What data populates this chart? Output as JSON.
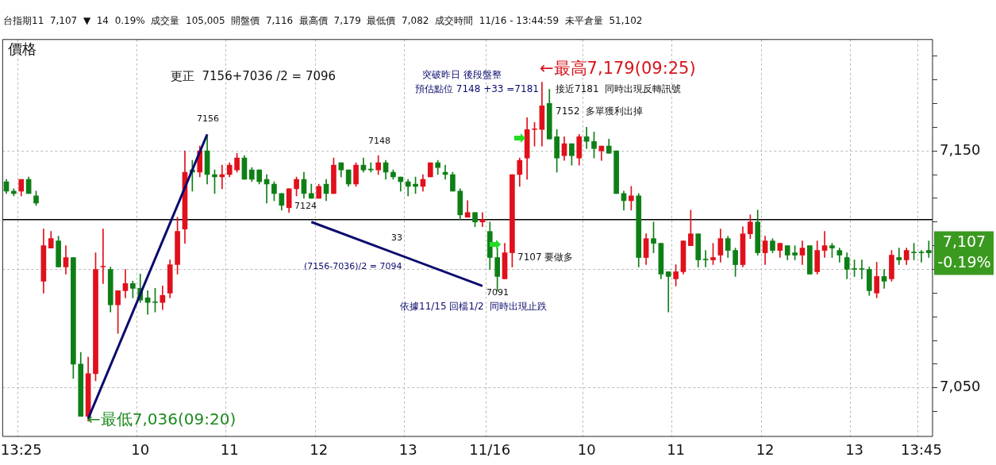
{
  "chart_data": {
    "type": "candlestick",
    "subtitle": "台指期11  7,107  ▼  14  0.19%  成交量  105,005  開盤價  7,116  最高價  7,179  最低價  7,082  成交時間  11/16 - 13:44:59  未平倉量  51,102",
    "ylabel": "價格",
    "categories": [
      null,
      null,
      "13:25",
      null,
      null,
      null,
      null,
      null,
      null,
      null,
      null,
      null,
      null,
      null,
      null,
      null,
      null,
      null,
      "10",
      null,
      null,
      null,
      null,
      null,
      null,
      null,
      null,
      null,
      null,
      null,
      "11",
      null,
      null,
      null,
      null,
      null,
      null,
      null,
      null,
      null,
      null,
      null,
      "12",
      null,
      null,
      null,
      null,
      null,
      null,
      null,
      null,
      null,
      null,
      null,
      "13",
      null,
      null,
      null,
      null,
      null,
      null,
      null,
      null,
      null,
      null,
      "11/16",
      null,
      null,
      null,
      null,
      null,
      null,
      null,
      null,
      null,
      null,
      null,
      null,
      "10",
      null,
      null,
      null,
      null,
      null,
      null,
      null,
      null,
      null,
      null,
      null,
      "11",
      null,
      null,
      null,
      null,
      null,
      null,
      null,
      null,
      null,
      null,
      null,
      "12",
      null,
      null,
      null,
      null,
      null,
      null,
      null,
      null,
      null,
      null,
      null,
      "13",
      null,
      null,
      null,
      null,
      null,
      null,
      null,
      null,
      "13:45",
      null
    ],
    "ohlc": [
      [
        7137,
        7138,
        7132,
        7133
      ],
      [
        7133,
        7134,
        7131,
        7132
      ],
      [
        7133,
        7138,
        7131,
        7138
      ],
      [
        7138,
        7139,
        7132,
        7132
      ],
      [
        7131,
        7133,
        7127,
        7128
      ],
      [
        7095,
        7117,
        7090,
        7110
      ],
      [
        7109,
        7116,
        7109,
        7113
      ],
      [
        7112,
        7114,
        7101,
        7101
      ],
      [
        7101,
        7110,
        7098,
        7105
      ],
      [
        7105,
        7105,
        7054,
        7060
      ],
      [
        7060,
        7065,
        7038,
        7038
      ],
      [
        7038,
        7063,
        7036,
        7056
      ],
      [
        7056,
        7107,
        7053,
        7100
      ],
      [
        7101,
        7117,
        7094,
        7101
      ],
      [
        7100,
        7101,
        7082,
        7085
      ],
      [
        7085,
        7091,
        7073,
        7091
      ],
      [
        7091,
        7100,
        7088,
        7094
      ],
      [
        7094,
        7095,
        7088,
        7092
      ],
      [
        7092,
        7098,
        7086,
        7087
      ],
      [
        7088,
        7091,
        7081,
        7086
      ],
      [
        7086,
        7092,
        7082,
        7086
      ],
      [
        7086,
        7093,
        7083,
        7089
      ],
      [
        7090,
        7104,
        7088,
        7102
      ],
      [
        7102,
        7122,
        7098,
        7116
      ],
      [
        7117,
        7150,
        7111,
        7141
      ],
      [
        7142,
        7146,
        7133,
        7141
      ],
      [
        7141,
        7152,
        7139,
        7150
      ],
      [
        7150,
        7156,
        7136,
        7140
      ],
      [
        7140,
        7142,
        7132,
        7139
      ],
      [
        7139,
        7144,
        7134,
        7140
      ],
      [
        7140,
        7145,
        7139,
        7144
      ],
      [
        7142,
        7149,
        7141,
        7147
      ],
      [
        7147,
        7148,
        7138,
        7138
      ],
      [
        7142,
        7143,
        7137,
        7138
      ],
      [
        7142,
        7142,
        7136,
        7137
      ],
      [
        7138,
        7140,
        7128,
        7136
      ],
      [
        7136,
        7137,
        7129,
        7132
      ],
      [
        7132,
        7132,
        7125,
        7127
      ],
      [
        7126,
        7134,
        7124,
        7134
      ],
      [
        7134,
        7139,
        7131,
        7138
      ],
      [
        7138,
        7141,
        7130,
        7132
      ],
      [
        7132,
        7136,
        7130,
        7130
      ],
      [
        7130,
        7136,
        7130,
        7135
      ],
      [
        7136,
        7138,
        7129,
        7132
      ],
      [
        7132,
        7147,
        7132,
        7144
      ],
      [
        7145,
        7145,
        7139,
        7142
      ],
      [
        7142,
        7142,
        7135,
        7136
      ],
      [
        7136,
        7145,
        7135,
        7144
      ],
      [
        7144,
        7147,
        7141,
        7142
      ],
      [
        7142,
        7145,
        7141,
        7142
      ],
      [
        7142,
        7148,
        7140,
        7145
      ],
      [
        7145,
        7146,
        7138,
        7141
      ],
      [
        7141,
        7142,
        7138,
        7139
      ],
      [
        7139,
        7139,
        7133,
        7137
      ],
      [
        7137,
        7138,
        7131,
        7135
      ],
      [
        7136,
        7139,
        7132,
        7135
      ],
      [
        7135,
        7140,
        7133,
        7138
      ],
      [
        7139,
        7145,
        7139,
        7145
      ],
      [
        7145,
        7146,
        7140,
        7143
      ],
      [
        7141,
        7144,
        7138,
        7140
      ],
      [
        7140,
        7141,
        7133,
        7133
      ],
      [
        7133,
        7134,
        7121,
        7123
      ],
      [
        7122,
        7129,
        7122,
        7124
      ],
      [
        7124,
        7124,
        7118,
        7120
      ],
      [
        7120,
        7124,
        7118,
        7121
      ],
      [
        7116,
        7120,
        7100,
        7105
      ],
      [
        7105,
        7109,
        7091,
        7097
      ],
      [
        7096,
        7111,
        7096,
        7107
      ],
      [
        7107,
        7140,
        7101,
        7140
      ],
      [
        7140,
        7147,
        7135,
        7146
      ],
      [
        7147,
        7164,
        7138,
        7159
      ],
      [
        7159,
        7162,
        7152,
        7159
      ],
      [
        7159,
        7179,
        7152,
        7169
      ],
      [
        7170,
        7176,
        7155,
        7155
      ],
      [
        7156,
        7159,
        7141,
        7147
      ],
      [
        7148,
        7156,
        7146,
        7153
      ],
      [
        7153,
        7153,
        7144,
        7148
      ],
      [
        7147,
        7157,
        7144,
        7156
      ],
      [
        7156,
        7160,
        7151,
        7154
      ],
      [
        7154,
        7158,
        7147,
        7151
      ],
      [
        7150,
        7152,
        7146,
        7152
      ],
      [
        7152,
        7155,
        7149,
        7149
      ],
      [
        7150,
        7150,
        7132,
        7132
      ],
      [
        7132,
        7133,
        7125,
        7129
      ],
      [
        7129,
        7135,
        7125,
        7131
      ],
      [
        7131,
        7132,
        7101,
        7105
      ],
      [
        7105,
        7115,
        7102,
        7113
      ],
      [
        7113,
        7120,
        7107,
        7111
      ],
      [
        7111,
        7111,
        7096,
        7098
      ],
      [
        7099,
        7099,
        7082,
        7097
      ],
      [
        7096,
        7102,
        7093,
        7099
      ],
      [
        7099,
        7112,
        7098,
        7112
      ],
      [
        7110,
        7125,
        7110,
        7115
      ],
      [
        7115,
        7115,
        7101,
        7104
      ],
      [
        7104,
        7108,
        7101,
        7104
      ],
      [
        7104,
        7111,
        7102,
        7105
      ],
      [
        7106,
        7117,
        7103,
        7113
      ],
      [
        7113,
        7114,
        7105,
        7108
      ],
      [
        7108,
        7109,
        7097,
        7102
      ],
      [
        7102,
        7118,
        7101,
        7115
      ],
      [
        7115,
        7123,
        7113,
        7120
      ],
      [
        7120,
        7125,
        7106,
        7107
      ],
      [
        7107,
        7114,
        7102,
        7112
      ],
      [
        7112,
        7113,
        7107,
        7108
      ],
      [
        7108,
        7111,
        7105,
        7111
      ],
      [
        7110,
        7110,
        7104,
        7106
      ],
      [
        7107,
        7110,
        7104,
        7106
      ],
      [
        7106,
        7112,
        7102,
        7109
      ],
      [
        7110,
        7110,
        7098,
        7098
      ],
      [
        7099,
        7112,
        7098,
        7108
      ],
      [
        7108,
        7116,
        7105,
        7110
      ],
      [
        7110,
        7111,
        7105,
        7109
      ],
      [
        7108,
        7109,
        7103,
        7106
      ],
      [
        7105,
        7107,
        7096,
        7100
      ],
      [
        7100,
        7104,
        7097,
        7100
      ],
      [
        7100,
        7104,
        7096,
        7100
      ],
      [
        7100,
        7101,
        7089,
        7091
      ],
      [
        7090,
        7103,
        7088,
        7097
      ],
      [
        7097,
        7100,
        7092,
        7095
      ],
      [
        7096,
        7108,
        7095,
        7106
      ],
      [
        7105,
        7109,
        7102,
        7104
      ],
      [
        7104,
        7109,
        7102,
        7108
      ],
      [
        7107,
        7111,
        7104,
        7107
      ],
      [
        7107,
        7108,
        7103,
        7107
      ],
      [
        7108,
        7112,
        7105,
        7107
      ]
    ],
    "colors": [
      "#0e7f16",
      "#0e7f16",
      "#e0101c",
      "#0e7f16",
      "#0e7f16",
      "#e0101c",
      "#e0101c",
      "#0e7f16",
      "#e0101c",
      "#0e7f16",
      "#0e7f16",
      "#e0101c",
      "#e0101c",
      "#e0101c",
      "#0e7f16",
      "#e0101c",
      "#e0101c",
      "#0e7f16",
      "#0e7f16",
      "#0e7f16",
      "#0e7f16",
      "#e0101c",
      "#e0101c",
      "#e0101c",
      "#e0101c",
      "#0e7f16",
      "#e0101c",
      "#0e7f16",
      "#0e7f16",
      "#e0101c",
      "#e0101c",
      "#e0101c",
      "#0e7f16",
      "#0e7f16",
      "#0e7f16",
      "#0e7f16",
      "#0e7f16",
      "#0e7f16",
      "#e0101c",
      "#e0101c",
      "#0e7f16",
      "#0e7f16",
      "#e0101c",
      "#0e7f16",
      "#e0101c",
      "#0e7f16",
      "#0e7f16",
      "#e0101c",
      "#0e7f16",
      "#0e7f16",
      "#e0101c",
      "#0e7f16",
      "#0e7f16",
      "#0e7f16",
      "#0e7f16",
      "#0e7f16",
      "#e0101c",
      "#e0101c",
      "#0e7f16",
      "#0e7f16",
      "#0e7f16",
      "#0e7f16",
      "#e0101c",
      "#0e7f16",
      "#e0101c",
      "#0e7f16",
      "#0e7f16",
      "#e0101c",
      "#e0101c",
      "#e0101c",
      "#e0101c",
      "#e0101c",
      "#e0101c",
      "#0e7f16",
      "#0e7f16",
      "#e0101c",
      "#0e7f16",
      "#e0101c",
      "#0e7f16",
      "#0e7f16",
      "#e0101c",
      "#0e7f16",
      "#0e7f16",
      "#0e7f16",
      "#e0101c",
      "#0e7f16",
      "#e0101c",
      "#0e7f16",
      "#0e7f16",
      "#0e7f16",
      "#e0101c",
      "#e0101c",
      "#e0101c",
      "#0e7f16",
      "#0e7f16",
      "#e0101c",
      "#e0101c",
      "#0e7f16",
      "#0e7f16",
      "#e0101c",
      "#e0101c",
      "#0e7f16",
      "#e0101c",
      "#0e7f16",
      "#e0101c",
      "#0e7f16",
      "#0e7f16",
      "#e0101c",
      "#0e7f16",
      "#e0101c",
      "#e0101c",
      "#0e7f16",
      "#0e7f16",
      "#0e7f16",
      "#0e7f16",
      "#0e7f16",
      "#0e7f16",
      "#e0101c",
      "#0e7f16",
      "#e0101c",
      "#0e7f16",
      "#e0101c",
      "#0e7f16",
      "#0e7f16",
      "#0e7f16"
    ],
    "series": [
      {
        "type": "line",
        "color": "#0a0a6e",
        "values": [
          null,
          null,
          null,
          null,
          null,
          null,
          null,
          null,
          null,
          null,
          null,
          7037,
          null,
          null,
          null,
          null,
          null,
          null,
          null,
          null,
          null,
          null,
          null,
          null,
          null,
          null,
          null,
          7157,
          null,
          null,
          null,
          null,
          null,
          null,
          null,
          null,
          null,
          null,
          null,
          null,
          null,
          null,
          null,
          null,
          null,
          null,
          null,
          null,
          null,
          null,
          null,
          null,
          null,
          null,
          null,
          null,
          null,
          null,
          null,
          null,
          null,
          null,
          null,
          null,
          null,
          null,
          null,
          null,
          null,
          null,
          null,
          null,
          null,
          null,
          null,
          null,
          null,
          null,
          null,
          null,
          null,
          null,
          null,
          null,
          null,
          null,
          null,
          null,
          null,
          null,
          null,
          null,
          null,
          null,
          null,
          null,
          null,
          null,
          null,
          null,
          null,
          null,
          null,
          null,
          null,
          null,
          null,
          null,
          null,
          null,
          null,
          null,
          null,
          null,
          null,
          null,
          null,
          null,
          null,
          null,
          null,
          null,
          null,
          null,
          null
        ]
      },
      {
        "type": "line",
        "color": "#0a0a6e",
        "values": [
          null,
          null,
          null,
          null,
          null,
          null,
          null,
          null,
          null,
          null,
          null,
          null,
          null,
          null,
          null,
          null,
          null,
          null,
          null,
          null,
          null,
          null,
          null,
          null,
          null,
          null,
          null,
          null,
          null,
          null,
          null,
          null,
          null,
          null,
          null,
          null,
          null,
          null,
          null,
          null,
          null,
          7120,
          null,
          null,
          null,
          null,
          null,
          null,
          null,
          null,
          null,
          null,
          null,
          null,
          null,
          null,
          null,
          null,
          null,
          null,
          null,
          null,
          null,
          null,
          7093,
          null,
          null,
          null,
          null,
          null,
          null,
          null,
          null,
          null,
          null,
          null,
          null,
          null,
          null,
          null,
          null,
          null,
          null,
          null,
          null,
          null,
          null,
          null,
          null,
          null,
          null,
          null,
          null,
          null,
          null,
          null,
          null,
          null,
          null,
          null,
          null,
          null,
          null,
          null,
          null,
          null,
          null,
          null,
          null,
          null,
          null,
          null,
          null,
          null,
          null,
          null,
          null,
          null,
          null,
          null,
          null,
          null,
          null,
          null,
          null
        ]
      }
    ],
    "ylim": [
      7029.5,
      7197
    ],
    "yticks": [
      {
        "value": 7040,
        "label": null
      },
      {
        "value": 7050,
        "label": "7,050"
      },
      {
        "value": 7060,
        "label": null
      },
      {
        "value": 7070,
        "label": null
      },
      {
        "value": 7080,
        "label": null
      },
      {
        "value": 7090,
        "label": null
      },
      {
        "value": 7100,
        "label": null
      },
      {
        "value": 7110,
        "label": null
      },
      {
        "value": 7120,
        "label": null
      },
      {
        "value": 7130,
        "label": null
      },
      {
        "value": 7140,
        "label": null
      },
      {
        "value": 7150,
        "label": "7,150"
      },
      {
        "value": 7160,
        "label": null
      },
      {
        "value": 7170,
        "label": null
      },
      {
        "value": 7180,
        "label": null
      },
      {
        "value": 7190,
        "label": null
      }
    ],
    "ref_lines": [
      {
        "axis": "y",
        "value": 7121,
        "color": "#000000"
      }
    ],
    "grid": true,
    "legend": false,
    "annotations": [
      "更正  7156+7036 /2 = 7096",
      "7156",
      "7124",
      "33",
      "(7156-7036)/2 = 7094",
      "7091",
      "依據11/15 回檔1/2  同時出現止跌",
      "突破昨日 後段盤整",
      "預估點位 7148 +33 =7181",
      "7148",
      "←最高7,179(09:25)",
      "接近7181  同時出現反轉訊號",
      "7152  多單獲利出掉",
      "7107 要做多",
      "←最低7,036(09:20)",
      "7,107",
      "-0.19%"
    ]
  }
}
